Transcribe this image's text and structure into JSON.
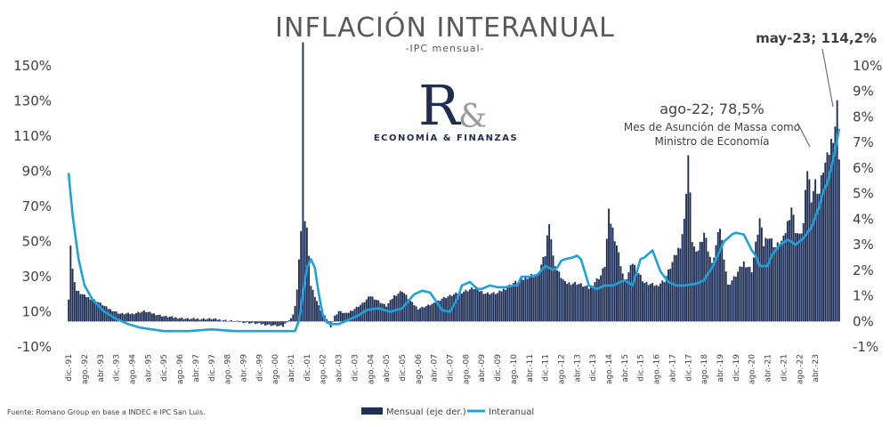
{
  "title": "INFLACIÓN INTERANUAL",
  "subtitle": "-IPC mensual-",
  "logo": {
    "mark": "R",
    "amp": "&",
    "text": "ECONOMÍA & FINANZAS"
  },
  "annotations": {
    "peak": "may-23; 114,2%",
    "massa_value": "ago-22; 78,5%",
    "massa_note_1": "Mes de Asunción de Massa como",
    "massa_note_2": "Ministro de Economía"
  },
  "source": "Fuente: Romano Group en base a INDEC e IPC San Luis.",
  "colors": {
    "bars": "#1f3058",
    "line": "#1ea1dc"
  },
  "chart_data": {
    "type": "bar+line",
    "y_left": {
      "label": "",
      "range": [
        -10,
        150
      ],
      "ticks": [
        "-10%",
        "10%",
        "30%",
        "50%",
        "70%",
        "90%",
        "110%",
        "130%",
        "150%"
      ]
    },
    "y_right": {
      "label": "",
      "range": [
        -1,
        10
      ],
      "ticks": [
        "-1%",
        "0%",
        "1%",
        "2%",
        "3%",
        "4%",
        "5%",
        "6%",
        "7%",
        "8%",
        "9%",
        "10%"
      ]
    },
    "x_ticks": [
      "dic.-91",
      "ago.-92",
      "abr.-93",
      "dic.-93",
      "ago.-94",
      "abr.-95",
      "dic.-95",
      "ago.-96",
      "abr.-97",
      "dic.-97",
      "ago.-98",
      "abr.-99",
      "dic.-99",
      "ago.-00",
      "abr.-01",
      "dic.-01",
      "ago.-02",
      "abr.-03",
      "dic.-03",
      "ago.-04",
      "abr.-05",
      "dic.-05",
      "ago.-06",
      "abr.-07",
      "dic.-07",
      "ago.-08",
      "abr.-09",
      "dic.-09",
      "ago.-10",
      "abr.-11",
      "dic.-11",
      "ago.-12",
      "abr.-13",
      "dic.-13",
      "ago.-14",
      "abr.-15",
      "dic.-15",
      "ago.-16",
      "abr.-17",
      "dic.-17",
      "ago.-18",
      "abr.-19",
      "dic.-19",
      "ago.-20",
      "abr.-21",
      "dic.-21",
      "ago.-22",
      "abr.-23"
    ],
    "legend": [
      "Mensual (eje der.)",
      "Interanual"
    ],
    "legend_position": "bottom-right",
    "series": [
      {
        "name": "Mensual (eje der.)",
        "axis": "right",
        "type": "bar",
        "anchors": [
          [
            0,
            0.9
          ],
          [
            1,
            3.0
          ],
          [
            2,
            2.0
          ],
          [
            4,
            1.2
          ],
          [
            8,
            1.0
          ],
          [
            14,
            0.8
          ],
          [
            20,
            0.5
          ],
          [
            26,
            0.3
          ],
          [
            32,
            0.3
          ],
          [
            38,
            0.4
          ],
          [
            48,
            0.2
          ],
          [
            60,
            0.1
          ],
          [
            72,
            0.1
          ],
          [
            84,
            0.0
          ],
          [
            96,
            -0.1
          ],
          [
            108,
            -0.2
          ],
          [
            110,
            0.0
          ],
          [
            112,
            0.1
          ],
          [
            113,
            0.3
          ],
          [
            114,
            0.6
          ],
          [
            115,
            1.2
          ],
          [
            116,
            2.5
          ],
          [
            117,
            3.5
          ],
          [
            118,
            10.4
          ],
          [
            119,
            4.0
          ],
          [
            120,
            3.6
          ],
          [
            121,
            2.7
          ],
          [
            122,
            1.4
          ],
          [
            124,
            1.0
          ],
          [
            126,
            0.6
          ],
          [
            128,
            0.3
          ],
          [
            130,
            0.1
          ],
          [
            132,
            -0.2
          ],
          [
            134,
            0.2
          ],
          [
            136,
            0.4
          ],
          [
            140,
            0.3
          ],
          [
            144,
            0.5
          ],
          [
            148,
            0.7
          ],
          [
            152,
            1.0
          ],
          [
            156,
            0.8
          ],
          [
            160,
            0.6
          ],
          [
            164,
            1.0
          ],
          [
            168,
            1.2
          ],
          [
            172,
            0.8
          ],
          [
            176,
            0.5
          ],
          [
            180,
            0.6
          ],
          [
            184,
            0.7
          ],
          [
            188,
            0.9
          ],
          [
            192,
            1.0
          ],
          [
            196,
            1.1
          ],
          [
            204,
            1.3
          ],
          [
            210,
            1.1
          ],
          [
            216,
            1.1
          ],
          [
            220,
            1.3
          ],
          [
            224,
            1.5
          ],
          [
            228,
            1.6
          ],
          [
            232,
            1.8
          ],
          [
            236,
            1.8
          ],
          [
            240,
            2.6
          ],
          [
            242,
            4.0
          ],
          [
            244,
            2.5
          ],
          [
            246,
            2.0
          ],
          [
            250,
            1.5
          ],
          [
            256,
            1.5
          ],
          [
            262,
            1.3
          ],
          [
            268,
            1.8
          ],
          [
            270,
            2.2
          ],
          [
            272,
            4.2
          ],
          [
            276,
            3.0
          ],
          [
            280,
            1.5
          ],
          [
            284,
            2.3
          ],
          [
            290,
            1.5
          ],
          [
            296,
            1.4
          ],
          [
            300,
            1.6
          ],
          [
            304,
            2.3
          ],
          [
            308,
            3.0
          ],
          [
            310,
            3.9
          ],
          [
            312,
            6.5
          ],
          [
            314,
            3.2
          ],
          [
            316,
            2.6
          ],
          [
            320,
            3.5
          ],
          [
            324,
            2.2
          ],
          [
            328,
            3.7
          ],
          [
            332,
            1.4
          ],
          [
            336,
            1.8
          ],
          [
            340,
            2.3
          ],
          [
            344,
            2.0
          ],
          [
            348,
            4.0
          ],
          [
            350,
            3.0
          ],
          [
            352,
            3.4
          ],
          [
            356,
            2.9
          ],
          [
            360,
            3.2
          ],
          [
            364,
            4.5
          ],
          [
            366,
            3.6
          ],
          [
            368,
            3.3
          ],
          [
            370,
            3.8
          ],
          [
            372,
            6.0
          ],
          [
            374,
            4.9
          ],
          [
            376,
            5.4
          ],
          [
            378,
            5.0
          ],
          [
            380,
            6.0
          ],
          [
            382,
            6.3
          ],
          [
            384,
            7.0
          ],
          [
            386,
            7.7
          ],
          [
            387,
            8.4
          ],
          [
            388,
            6.6
          ]
        ]
      },
      {
        "name": "Interanual",
        "axis": "left",
        "type": "line",
        "anchors": [
          [
            0,
            89
          ],
          [
            2,
            65
          ],
          [
            5,
            40
          ],
          [
            8,
            25
          ],
          [
            12,
            17
          ],
          [
            18,
            10
          ],
          [
            24,
            6
          ],
          [
            30,
            3
          ],
          [
            36,
            1
          ],
          [
            48,
            -1
          ],
          [
            60,
            -1
          ],
          [
            72,
            0
          ],
          [
            84,
            -1
          ],
          [
            96,
            -1
          ],
          [
            108,
            -1
          ],
          [
            114,
            -1
          ],
          [
            116,
            5
          ],
          [
            118,
            20
          ],
          [
            120,
            35
          ],
          [
            122,
            40
          ],
          [
            124,
            35
          ],
          [
            126,
            20
          ],
          [
            128,
            8
          ],
          [
            130,
            4
          ],
          [
            132,
            3
          ],
          [
            136,
            3
          ],
          [
            140,
            5
          ],
          [
            146,
            8
          ],
          [
            150,
            11
          ],
          [
            156,
            12
          ],
          [
            162,
            10
          ],
          [
            168,
            12
          ],
          [
            174,
            20
          ],
          [
            178,
            22
          ],
          [
            182,
            21
          ],
          [
            188,
            11
          ],
          [
            192,
            10
          ],
          [
            196,
            18
          ],
          [
            198,
            25
          ],
          [
            200,
            26
          ],
          [
            202,
            27
          ],
          [
            206,
            23
          ],
          [
            208,
            23
          ],
          [
            212,
            25
          ],
          [
            216,
            24
          ],
          [
            220,
            24
          ],
          [
            224,
            25
          ],
          [
            226,
            25
          ],
          [
            228,
            30
          ],
          [
            232,
            30
          ],
          [
            236,
            31
          ],
          [
            240,
            36
          ],
          [
            244,
            34
          ],
          [
            246,
            35
          ],
          [
            248,
            39
          ],
          [
            250,
            40
          ],
          [
            254,
            41
          ],
          [
            256,
            42
          ],
          [
            258,
            40
          ],
          [
            262,
            25
          ],
          [
            266,
            23
          ],
          [
            270,
            25
          ],
          [
            274,
            25
          ],
          [
            280,
            28
          ],
          [
            284,
            25
          ],
          [
            288,
            40
          ],
          [
            290,
            41
          ],
          [
            292,
            43
          ],
          [
            294,
            45
          ],
          [
            298,
            33
          ],
          [
            302,
            27
          ],
          [
            306,
            25
          ],
          [
            310,
            25
          ],
          [
            316,
            26
          ],
          [
            320,
            28
          ],
          [
            322,
            32
          ],
          [
            324,
            35
          ],
          [
            328,
            45
          ],
          [
            330,
            50
          ],
          [
            334,
            54
          ],
          [
            336,
            55
          ],
          [
            340,
            54
          ],
          [
            344,
            45
          ],
          [
            346,
            42
          ],
          [
            348,
            36
          ],
          [
            352,
            36
          ],
          [
            354,
            42
          ],
          [
            358,
            48
          ],
          [
            362,
            51
          ],
          [
            364,
            50
          ],
          [
            366,
            48
          ],
          [
            368,
            50
          ],
          [
            370,
            52
          ],
          [
            374,
            58
          ],
          [
            378,
            70
          ],
          [
            380,
            78.5
          ],
          [
            382,
            83
          ],
          [
            384,
            92
          ],
          [
            386,
            102
          ],
          [
            388,
            114.2
          ]
        ]
      }
    ]
  }
}
